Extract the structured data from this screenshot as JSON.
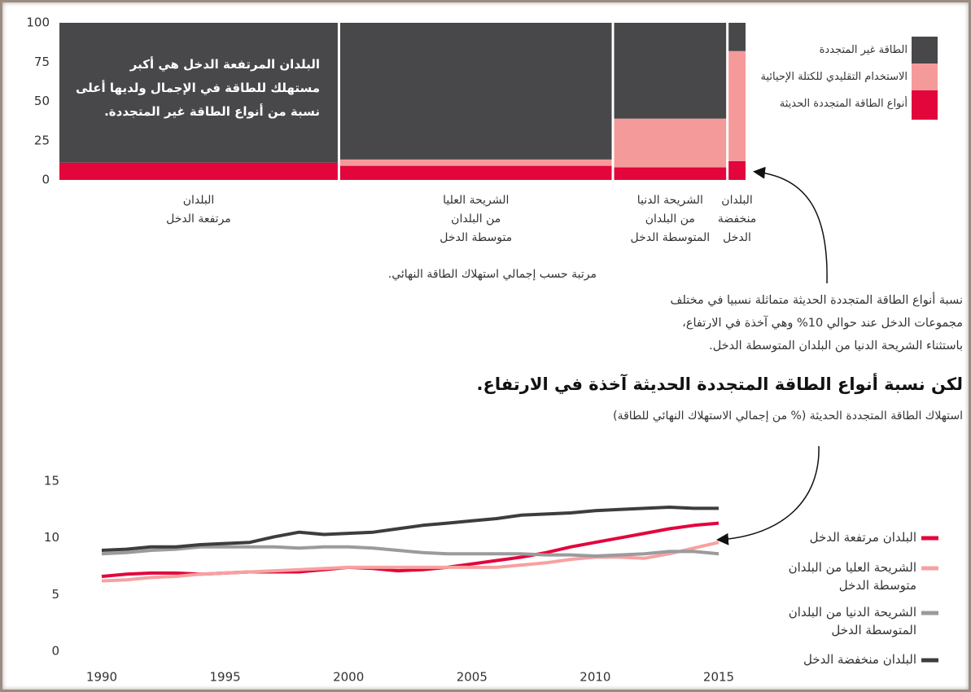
{
  "chart_data": [
    {
      "type": "marimekko",
      "categories": [
        "البلدان\nمرتفعة الدخل",
        "الشريحة العليا\nمن البلدان\nمتوسطة الدخل",
        "الشريحة الدنيا\nمن البلدان\nالمتوسطة الدخل",
        "البلدان\nمنخفضة\nالدخل"
      ],
      "widths": [
        41,
        40,
        16.5,
        2.5
      ],
      "series": [
        {
          "name": "الطاقة غير المتجددة",
          "color": "#48484b",
          "values": [
            89,
            87,
            61,
            18
          ]
        },
        {
          "name": "الاستخدام التقليدي للكتلة الإحيائية",
          "color": "#f59a9a",
          "values": [
            0,
            4,
            31,
            70
          ]
        },
        {
          "name": "أنواع الطاقة المتجددة الحديثة",
          "color": "#e2063c",
          "values": [
            11,
            9,
            8,
            12
          ]
        }
      ],
      "ylim": [
        0,
        100
      ],
      "yticks": [
        0,
        25,
        50,
        75,
        100
      ],
      "xlabel": "مرتبة حسب إجمالي استهلاك الطاقة النهائي.",
      "annotations": [
        "البلدان المرتفعة الدخل هي أكبر\nمستهلك للطاقة في الإجمال ولديها أعلى\nنسبة من أنواع الطاقة غير المتجددة.",
        "نسبة أنواع الطاقة المتجددة الحديثة متماثلة نسبيا في مختلف\nمجموعات الدخل عند حوالي 10% وهي آخذة في الارتفاع،\nباستثناء الشريحة الدنيا من البلدان المتوسطة الدخل."
      ]
    },
    {
      "type": "line",
      "title": "لكن نسبة أنواع الطاقة المتجددة الحديثة آخذة في الارتفاع.",
      "subtitle": "استهلاك الطاقة المتجددة الحديثة (% من إجمالي الاستهلاك النهائي للطاقة)",
      "x": [
        1990,
        1991,
        1992,
        1993,
        1994,
        1995,
        1996,
        1997,
        1998,
        1999,
        2000,
        2001,
        2002,
        2003,
        2004,
        2005,
        2006,
        2007,
        2008,
        2009,
        2010,
        2011,
        2012,
        2013,
        2014,
        2015
      ],
      "series": [
        {
          "name": "البلدان مرتفعة الدخل",
          "color": "#e2063c",
          "values": [
            6.6,
            6.8,
            6.9,
            6.9,
            6.8,
            6.9,
            7.0,
            7.0,
            7.0,
            7.2,
            7.4,
            7.3,
            7.1,
            7.2,
            7.4,
            7.7,
            8.0,
            8.3,
            8.7,
            9.2,
            9.6,
            10.0,
            10.4,
            10.8,
            11.1,
            11.3
          ]
        },
        {
          "name": "الشريحة العليا من البلدان\nمتوسطة الدخل",
          "color": "#f7a1a1",
          "values": [
            6.2,
            6.3,
            6.5,
            6.6,
            6.8,
            6.9,
            7.0,
            7.1,
            7.2,
            7.3,
            7.4,
            7.4,
            7.4,
            7.4,
            7.4,
            7.4,
            7.4,
            7.6,
            7.8,
            8.1,
            8.3,
            8.3,
            8.2,
            8.6,
            9.1,
            9.6
          ]
        },
        {
          "name": "الشريحة الدنيا من البلدان\nالمتوسطة الدخل",
          "color": "#9b9b9d",
          "values": [
            8.6,
            8.7,
            8.9,
            9.0,
            9.2,
            9.2,
            9.2,
            9.2,
            9.1,
            9.2,
            9.2,
            9.1,
            8.9,
            8.7,
            8.6,
            8.6,
            8.6,
            8.6,
            8.5,
            8.5,
            8.4,
            8.5,
            8.6,
            8.8,
            8.8,
            8.6
          ]
        },
        {
          "name": "البلدان منخفضة الدخل",
          "color": "#3d3d40",
          "values": [
            8.9,
            9.0,
            9.2,
            9.2,
            9.4,
            9.5,
            9.6,
            10.1,
            10.5,
            10.3,
            10.4,
            10.5,
            10.8,
            11.1,
            11.3,
            11.5,
            11.7,
            12.0,
            12.1,
            12.2,
            12.4,
            12.5,
            12.6,
            12.7,
            12.6,
            12.6
          ]
        }
      ],
      "xlim": [
        1990,
        2015
      ],
      "xticks": [
        1990,
        1995,
        2000,
        2005,
        2010,
        2015
      ],
      "ylim": [
        0,
        15
      ],
      "yticks": [
        0,
        5,
        10,
        15
      ]
    }
  ]
}
